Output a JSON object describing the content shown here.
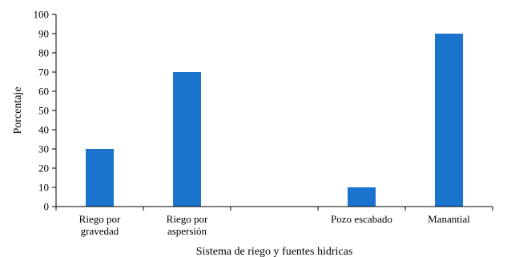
{
  "chart_data": {
    "type": "bar",
    "categories": [
      {
        "lines": [
          "Riego por",
          "gravedad"
        ]
      },
      {
        "lines": [
          "Riego por",
          "aspersión"
        ]
      },
      {
        "lines": []
      },
      {
        "lines": [
          "Pozo escabado"
        ]
      },
      {
        "lines": [
          "Manantial"
        ]
      }
    ],
    "values": [
      30,
      70,
      0,
      10,
      90
    ],
    "xlabel": "Sistema de riego y fuentes hidricas",
    "ylabel": "Porcentaje",
    "ylim": [
      0,
      100
    ],
    "yticks": [
      0,
      10,
      20,
      30,
      40,
      50,
      60,
      70,
      80,
      90,
      100
    ],
    "bar_color": "#1a73cc",
    "grid": false,
    "legend": "none"
  }
}
